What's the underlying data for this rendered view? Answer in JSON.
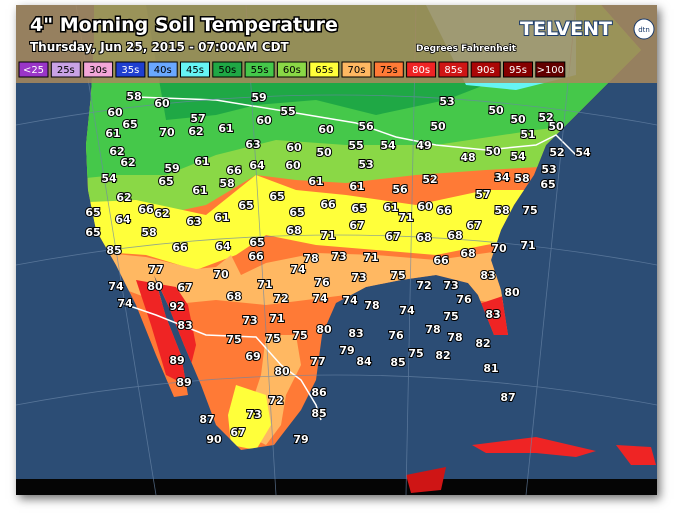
{
  "header": {
    "title": "4\" Morning Soil Temperature",
    "subtitle": "Thursday, Jun 25, 2015 - 07:00AM CDT",
    "units": "Degrees Fahrenheit",
    "brand": "TELVENT",
    "logo": "dtn"
  },
  "legend": {
    "labels": [
      "<25",
      "25s",
      "30s",
      "35s",
      "40s",
      "45s",
      "50s",
      "55s",
      "60s",
      "65s",
      "70s",
      "75s",
      "80s",
      "85s",
      "90s",
      "95s",
      ">100"
    ],
    "colors": [
      "#9a35c8",
      "#c9a2e6",
      "#f3a6d8",
      "#1f3fcf",
      "#6aa8ff",
      "#66f4f4",
      "#1fa845",
      "#45c84a",
      "#8ad846",
      "#ffff3a",
      "#ffb862",
      "#ff7a36",
      "#ef2424",
      "#cf1515",
      "#aa0606",
      "#850000",
      "#620000"
    ],
    "text_colors": [
      "#ffffff",
      "#000000",
      "#000000",
      "#ffffff",
      "#000000",
      "#000000",
      "#000000",
      "#000000",
      "#000000",
      "#000000",
      "#000000",
      "#000000",
      "#ffffff",
      "#ffffff",
      "#ffffff",
      "#ffffff",
      "#ffffff"
    ]
  },
  "map": {
    "values": [
      58,
      60,
      59,
      55,
      53,
      50,
      50,
      52,
      60,
      57,
      60,
      50,
      51,
      50,
      65,
      70,
      62,
      61,
      60,
      56,
      61,
      63,
      60,
      55,
      54,
      49,
      50,
      54,
      52,
      54,
      62,
      50,
      48,
      62,
      59,
      61,
      66,
      64,
      60,
      53,
      52,
      53,
      58,
      54,
      65,
      58,
      61,
      34,
      65,
      61,
      61,
      56,
      57,
      62,
      65,
      65,
      65,
      66,
      65,
      61,
      60,
      66,
      67,
      58,
      75,
      65,
      66,
      62,
      64,
      63,
      61,
      71,
      68,
      71,
      67,
      67,
      68,
      68,
      70,
      71,
      65,
      58,
      66,
      64,
      65,
      66,
      85,
      78,
      73,
      74,
      71,
      66,
      68,
      83,
      77,
      70,
      73,
      75,
      74,
      80,
      67,
      71,
      76,
      72,
      73,
      76,
      80,
      74,
      92,
      68,
      72,
      74,
      74,
      78,
      74,
      75,
      83,
      83,
      73,
      71,
      75,
      80,
      83,
      76,
      78,
      78,
      82,
      75,
      75,
      79,
      84,
      85,
      75,
      82,
      89,
      69,
      77,
      80,
      81,
      89,
      86,
      72,
      87,
      85,
      87,
      73,
      90,
      67,
      79
    ]
  }
}
